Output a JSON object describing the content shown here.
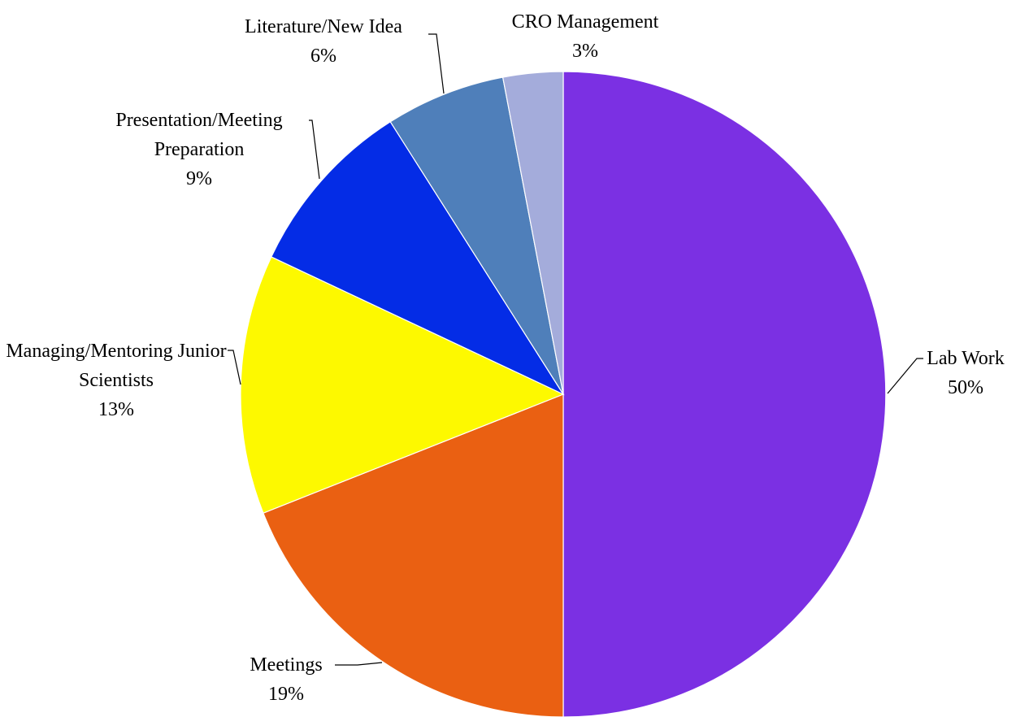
{
  "chart_data": {
    "type": "pie",
    "categories": [
      "Lab Work",
      "Meetings",
      "Managing/Mentoring Junior Scientists",
      "Presentation/Meeting Preparation",
      "Literature/New Idea",
      "CRO Management"
    ],
    "values": [
      50,
      19,
      13,
      9,
      6,
      3
    ],
    "value_labels": [
      "50%",
      "19%",
      "13%",
      "9%",
      "6%",
      "3%"
    ],
    "colors": [
      "#7b30e3",
      "#ea6012",
      "#fdf900",
      "#042ce6",
      "#4f7fba",
      "#a4acdb"
    ]
  }
}
